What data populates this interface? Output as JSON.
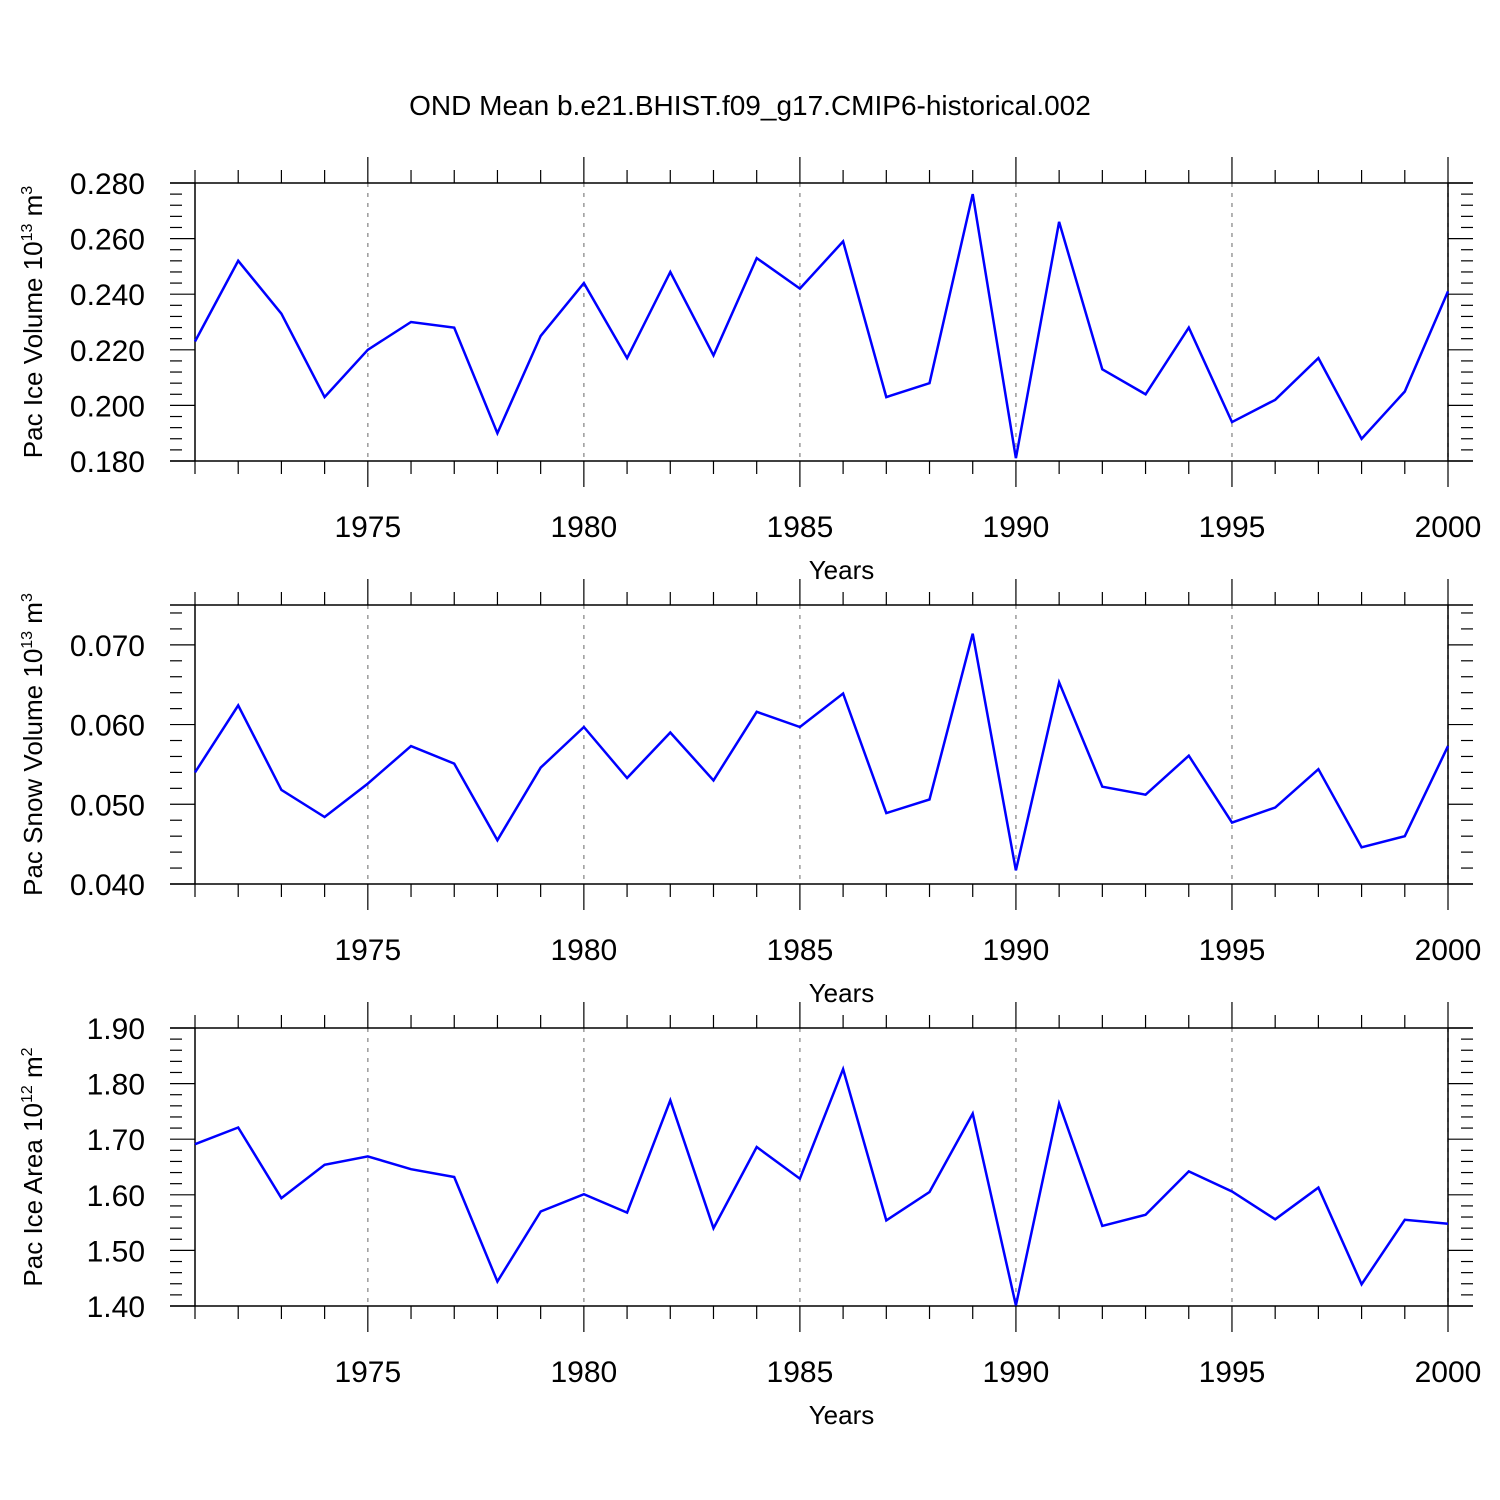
{
  "title": "OND Mean b.e21.BHIST.f09_g17.CMIP6-historical.002",
  "colors": {
    "line": "#0000ff",
    "axis": "#000000",
    "grid": "#9a9a9a"
  },
  "chart_data": [
    {
      "type": "line",
      "ylabel": {
        "base": "Pac Ice Volume 10",
        "exp": "13",
        "unit": " m",
        "unit_exp": "3"
      },
      "xlabel": "Years",
      "xlim": [
        1971,
        2000
      ],
      "ylim": [
        0.18,
        0.28
      ],
      "yticks": [
        "0.180",
        "0.200",
        "0.220",
        "0.240",
        "0.260",
        "0.280"
      ],
      "xticks": [
        "1975",
        "1980",
        "1985",
        "1990",
        "1995",
        "2000"
      ],
      "grid": "dashed vertical at labeled years",
      "x": [
        1971,
        1972,
        1973,
        1974,
        1975,
        1976,
        1977,
        1978,
        1979,
        1980,
        1981,
        1982,
        1983,
        1984,
        1985,
        1986,
        1987,
        1988,
        1989,
        1990,
        1991,
        1992,
        1993,
        1994,
        1995,
        1996,
        1997,
        1998,
        1999,
        2000
      ],
      "values": [
        0.223,
        0.252,
        0.233,
        0.203,
        0.22,
        0.23,
        0.228,
        0.19,
        0.225,
        0.244,
        0.217,
        0.248,
        0.218,
        0.253,
        0.242,
        0.259,
        0.203,
        0.208,
        0.276,
        0.181,
        0.266,
        0.213,
        0.204,
        0.228,
        0.194,
        0.202,
        0.217,
        0.188,
        0.205,
        0.241
      ]
    },
    {
      "type": "line",
      "ylabel": {
        "base": "Pac Snow Volume 10",
        "exp": "13",
        "unit": " m",
        "unit_exp": "3"
      },
      "xlabel": "Years",
      "xlim": [
        1971,
        2000
      ],
      "ylim": [
        0.04,
        0.075
      ],
      "yticks": [
        "0.040",
        "0.050",
        "0.060",
        "0.070"
      ],
      "xticks": [
        "1975",
        "1980",
        "1985",
        "1990",
        "1995",
        "2000"
      ],
      "grid": "dashed vertical at labeled years",
      "x": [
        1971,
        1972,
        1973,
        1974,
        1975,
        1976,
        1977,
        1978,
        1979,
        1980,
        1981,
        1982,
        1983,
        1984,
        1985,
        1986,
        1987,
        1988,
        1989,
        1990,
        1991,
        1992,
        1993,
        1994,
        1995,
        1996,
        1997,
        1998,
        1999,
        2000
      ],
      "values": [
        0.054,
        0.0624,
        0.0518,
        0.0484,
        0.0526,
        0.0573,
        0.0551,
        0.0455,
        0.0546,
        0.0597,
        0.0533,
        0.059,
        0.053,
        0.0616,
        0.0597,
        0.0639,
        0.0489,
        0.0506,
        0.0714,
        0.0417,
        0.0653,
        0.0522,
        0.0512,
        0.0561,
        0.0477,
        0.0496,
        0.0544,
        0.0446,
        0.046,
        0.0573
      ]
    },
    {
      "type": "line",
      "ylabel": {
        "base": "Pac Ice Area 10",
        "exp": "12",
        "unit": " m",
        "unit_exp": "2"
      },
      "xlabel": "Years",
      "xlim": [
        1971,
        2000
      ],
      "ylim": [
        1.4,
        1.9
      ],
      "yticks": [
        "1.40",
        "1.50",
        "1.60",
        "1.70",
        "1.80",
        "1.90"
      ],
      "xticks": [
        "1975",
        "1980",
        "1985",
        "1990",
        "1995",
        "2000"
      ],
      "grid": "dashed vertical at labeled years",
      "x": [
        1971,
        1972,
        1973,
        1974,
        1975,
        1976,
        1977,
        1978,
        1979,
        1980,
        1981,
        1982,
        1983,
        1984,
        1985,
        1986,
        1987,
        1988,
        1989,
        1990,
        1991,
        1992,
        1993,
        1994,
        1995,
        1996,
        1997,
        1998,
        1999,
        2000
      ],
      "values": [
        1.691,
        1.721,
        1.594,
        1.654,
        1.669,
        1.646,
        1.632,
        1.444,
        1.57,
        1.601,
        1.568,
        1.77,
        1.54,
        1.686,
        1.629,
        1.826,
        1.554,
        1.605,
        1.746,
        1.401,
        1.764,
        1.544,
        1.564,
        1.642,
        1.606,
        1.556,
        1.613,
        1.439,
        1.555,
        1.548
      ]
    }
  ]
}
